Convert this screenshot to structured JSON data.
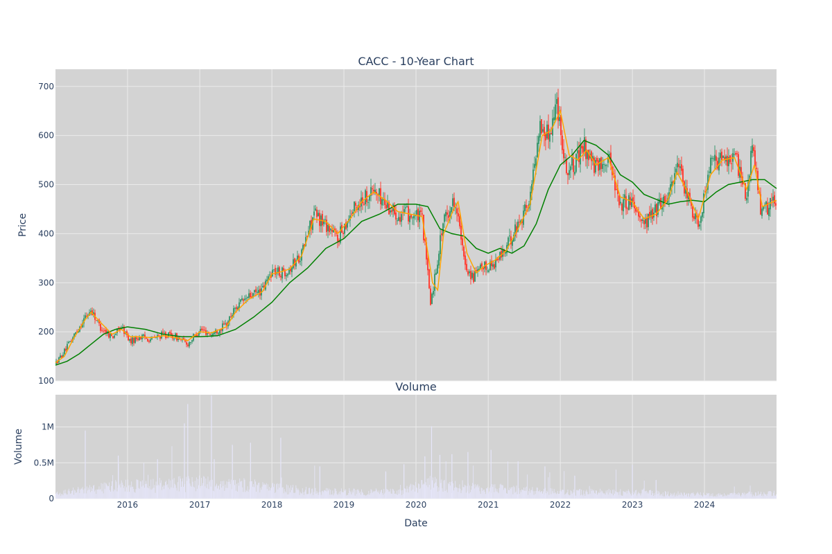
{
  "chart_data": [
    {
      "type": "candlestick",
      "title": "CACC - 10-Year Chart",
      "ylabel": "Price",
      "ylim": [
        100,
        735
      ],
      "x_range": [
        "2015-01-01",
        "2024-12-31"
      ],
      "y_ticks": [
        "100",
        "200",
        "300",
        "400",
        "500",
        "600",
        "700"
      ],
      "grid": true,
      "colors": {
        "plot_bg": "#d3d3d3",
        "grid": "#ebebeb",
        "up": "#3d9970",
        "down": "#ff4136",
        "ma_fast": "#ffa500",
        "ma_slow": "#008000"
      },
      "series": [
        {
          "key": "close_trend",
          "x": [
            "2015-01-01",
            "2015-02-15",
            "2015-04-01",
            "2015-06-01",
            "2015-07-01",
            "2015-08-15",
            "2015-10-15",
            "2015-12-01",
            "2016-01-15",
            "2016-03-01",
            "2016-05-01",
            "2016-07-01",
            "2016-09-01",
            "2016-11-01",
            "2017-01-01",
            "2017-03-01",
            "2017-05-15",
            "2017-07-01",
            "2017-09-01",
            "2017-11-15",
            "2018-01-01",
            "2018-02-15",
            "2018-04-01",
            "2018-06-01",
            "2018-08-01",
            "2018-10-01",
            "2018-12-01",
            "2019-02-01",
            "2019-04-01",
            "2019-06-01",
            "2019-08-01",
            "2019-10-01",
            "2019-12-01",
            "2020-02-01",
            "2020-03-15",
            "2020-04-01",
            "2020-05-15",
            "2020-07-01",
            "2020-07-20",
            "2020-09-01",
            "2020-10-15",
            "2020-12-01",
            "2021-02-01",
            "2021-04-01",
            "2021-06-01",
            "2021-08-01",
            "2021-09-15",
            "2021-11-01",
            "2021-12-15",
            "2022-02-01",
            "2022-03-15",
            "2022-05-01",
            "2022-07-01",
            "2022-09-01",
            "2022-11-01",
            "2023-01-01",
            "2023-03-01",
            "2023-05-01",
            "2023-07-01",
            "2023-08-15",
            "2023-10-01",
            "2023-12-01",
            "2024-02-01",
            "2024-04-01",
            "2024-06-01",
            "2024-08-01",
            "2024-09-01",
            "2024-10-15",
            "2024-12-31"
          ],
          "y": [
            135,
            160,
            190,
            230,
            245,
            210,
            190,
            210,
            180,
            190,
            185,
            195,
            190,
            175,
            205,
            195,
            215,
            250,
            270,
            285,
            325,
            320,
            330,
            360,
            440,
            420,
            390,
            440,
            470,
            490,
            460,
            440,
            440,
            430,
            260,
            300,
            420,
            460,
            470,
            340,
            310,
            330,
            340,
            370,
            420,
            470,
            620,
            600,
            670,
            530,
            540,
            580,
            530,
            560,
            460,
            470,
            420,
            450,
            480,
            540,
            480,
            420,
            540,
            550,
            560,
            480,
            580,
            440,
            470
          ]
        },
        {
          "name": "MA20",
          "key": "ma20",
          "x": [
            "2015-01-01",
            "2015-02-15",
            "2015-04-01",
            "2015-06-01",
            "2015-07-01",
            "2015-08-15",
            "2015-10-15",
            "2015-12-01",
            "2016-01-15",
            "2016-03-01",
            "2016-05-01",
            "2016-07-01",
            "2016-09-01",
            "2016-11-01",
            "2017-01-01",
            "2017-03-01",
            "2017-05-15",
            "2017-07-01",
            "2017-09-01",
            "2017-11-15",
            "2018-01-01",
            "2018-02-15",
            "2018-04-01",
            "2018-06-01",
            "2018-08-01",
            "2018-10-01",
            "2018-12-01",
            "2019-02-01",
            "2019-04-01",
            "2019-06-01",
            "2019-08-01",
            "2019-10-01",
            "2019-12-01",
            "2020-02-01",
            "2020-03-25",
            "2020-04-20",
            "2020-05-20",
            "2020-07-10",
            "2020-08-01",
            "2020-09-15",
            "2020-11-01",
            "2020-12-15",
            "2021-02-01",
            "2021-04-01",
            "2021-06-01",
            "2021-08-01",
            "2021-10-01",
            "2021-11-15",
            "2022-01-01",
            "2022-02-15",
            "2022-04-01",
            "2022-05-15",
            "2022-07-01",
            "2022-09-01",
            "2022-11-01",
            "2023-01-01",
            "2023-03-01",
            "2023-05-01",
            "2023-07-01",
            "2023-08-15",
            "2023-10-01",
            "2023-12-01",
            "2024-02-01",
            "2024-04-01",
            "2024-06-01",
            "2024-08-01",
            "2024-09-10",
            "2024-10-20",
            "2024-12-31"
          ],
          "y": [
            137,
            150,
            185,
            225,
            240,
            220,
            195,
            205,
            190,
            190,
            188,
            192,
            188,
            182,
            200,
            198,
            210,
            240,
            265,
            282,
            318,
            322,
            328,
            355,
            430,
            425,
            400,
            430,
            465,
            485,
            468,
            445,
            440,
            435,
            300,
            285,
            400,
            450,
            465,
            360,
            320,
            335,
            345,
            365,
            410,
            460,
            600,
            610,
            650,
            560,
            550,
            570,
            540,
            555,
            475,
            465,
            430,
            440,
            470,
            525,
            490,
            430,
            520,
            550,
            555,
            490,
            540,
            455,
            468
          ]
        },
        {
          "name": "MA200",
          "key": "ma200",
          "x": [
            "2015-01-01",
            "2015-03-01",
            "2015-05-01",
            "2015-07-01",
            "2015-09-01",
            "2015-11-01",
            "2016-01-01",
            "2016-04-01",
            "2016-07-01",
            "2016-10-01",
            "2017-01-01",
            "2017-04-01",
            "2017-07-01",
            "2017-10-01",
            "2018-01-01",
            "2018-04-01",
            "2018-07-01",
            "2018-10-01",
            "2019-01-01",
            "2019-04-01",
            "2019-07-01",
            "2019-10-01",
            "2020-01-01",
            "2020-03-01",
            "2020-05-01",
            "2020-07-01",
            "2020-09-01",
            "2020-11-01",
            "2021-01-01",
            "2021-03-01",
            "2021-05-01",
            "2021-07-01",
            "2021-09-01",
            "2021-11-01",
            "2022-01-01",
            "2022-03-01",
            "2022-05-01",
            "2022-07-01",
            "2022-09-01",
            "2022-11-01",
            "2023-01-01",
            "2023-03-01",
            "2023-05-01",
            "2023-07-01",
            "2023-09-01",
            "2023-11-01",
            "2024-01-01",
            "2024-03-01",
            "2024-05-01",
            "2024-07-01",
            "2024-09-01",
            "2024-11-01",
            "2024-12-31"
          ],
          "y": [
            132,
            140,
            155,
            175,
            195,
            205,
            210,
            205,
            195,
            190,
            190,
            192,
            205,
            230,
            260,
            300,
            330,
            370,
            390,
            425,
            440,
            460,
            460,
            455,
            410,
            400,
            395,
            370,
            360,
            370,
            360,
            375,
            420,
            490,
            540,
            560,
            590,
            580,
            560,
            520,
            505,
            480,
            470,
            460,
            465,
            468,
            465,
            485,
            500,
            505,
            510,
            510,
            492
          ]
        }
      ]
    },
    {
      "type": "bar",
      "title": "Volume",
      "xlabel": "Date",
      "ylabel": "Volume",
      "ylim": [
        0,
        1450000
      ],
      "y_ticks": [
        "0",
        "0.5M",
        "1M"
      ],
      "x_ticks": [
        "2016",
        "2017",
        "2018",
        "2019",
        "2020",
        "2021",
        "2022",
        "2023",
        "2024"
      ],
      "bar_color": "#e6e6fa",
      "baseline_x": [
        "2015-01-01",
        "2015-06-01",
        "2015-12-01",
        "2016-06-01",
        "2016-11-01",
        "2017-03-01",
        "2017-09-01",
        "2018-02-01",
        "2018-08-01",
        "2019-03-01",
        "2019-10-01",
        "2020-03-15",
        "2020-09-01",
        "2021-03-01",
        "2021-09-01",
        "2022-03-01",
        "2022-09-01",
        "2023-03-01",
        "2023-09-01",
        "2024-03-01",
        "2024-09-01",
        "2024-12-31"
      ],
      "baseline_y": [
        90000,
        150000,
        220000,
        230000,
        260000,
        250000,
        230000,
        180000,
        120000,
        120000,
        110000,
        260000,
        180000,
        170000,
        130000,
        110000,
        110000,
        100000,
        80000,
        70000,
        80000,
        90000
      ],
      "spikes_x": [
        "2015-06-01",
        "2015-11-15",
        "2016-06-01",
        "2016-10-15",
        "2016-11-01",
        "2017-03-01",
        "2017-03-15",
        "2017-06-15",
        "2017-09-15",
        "2018-02-15",
        "2018-09-01",
        "2019-08-01",
        "2019-11-01",
        "2020-02-15",
        "2020-03-20",
        "2020-05-01",
        "2020-07-01",
        "2020-09-20",
        "2021-01-15",
        "2021-06-01",
        "2021-10-15",
        "2022-03-15",
        "2023-01-01",
        "2023-05-01"
      ],
      "spikes_y": [
        950000,
        600000,
        550000,
        1050000,
        1320000,
        1440000,
        550000,
        750000,
        780000,
        850000,
        450000,
        380000,
        480000,
        590000,
        1010000,
        610000,
        620000,
        650000,
        680000,
        520000,
        450000,
        320000,
        470000,
        260000
      ]
    }
  ]
}
